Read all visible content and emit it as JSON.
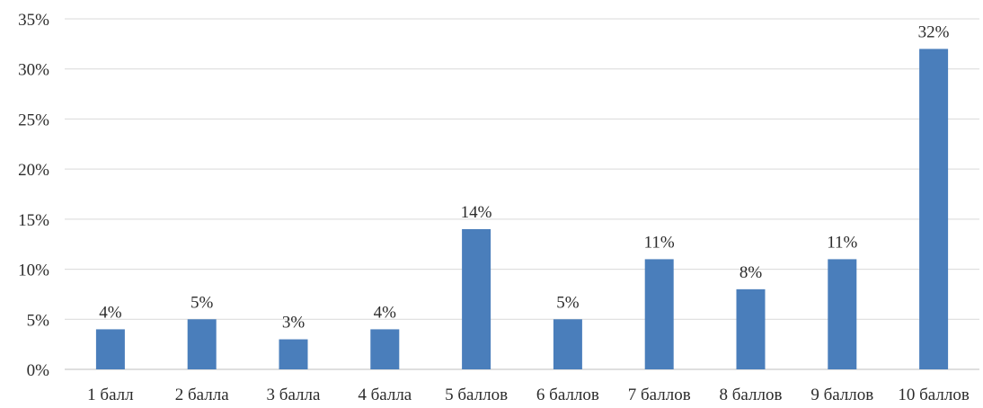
{
  "chart_data": {
    "type": "bar",
    "categories": [
      "1 балл",
      "2 балла",
      "3 балла",
      "4 балла",
      "5 баллов",
      "6 баллов",
      "7 баллов",
      "8 баллов",
      "9 баллов",
      "10 баллов"
    ],
    "values": [
      4,
      5,
      3,
      4,
      14,
      5,
      11,
      8,
      11,
      32
    ],
    "data_labels": [
      "4%",
      "5%",
      "3%",
      "4%",
      "14%",
      "5%",
      "11%",
      "8%",
      "11%",
      "32%"
    ],
    "yticks": [
      "0%",
      "5%",
      "10%",
      "15%",
      "20%",
      "25%",
      "30%",
      "35%"
    ],
    "ylim": [
      0,
      35
    ],
    "title": "",
    "xlabel": "",
    "ylabel": "",
    "grid": true,
    "legend": "none",
    "bar_color": "#4a7ebb"
  }
}
